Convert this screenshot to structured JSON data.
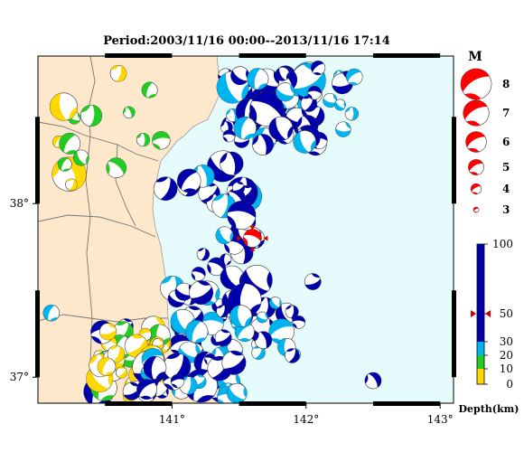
{
  "title": "Period:2003/11/16 00:00--2013/11/16 17:14",
  "map": {
    "lat_ticks": [
      {
        "label": "38°",
        "lat": 38
      },
      {
        "label": "37°",
        "lat": 37
      }
    ],
    "lon_ticks": [
      {
        "label": "141°",
        "lon": 141
      },
      {
        "label": "142°",
        "lon": 142
      },
      {
        "label": "143°",
        "lon": 143
      }
    ],
    "extent": {
      "lon_min": 140.0,
      "lon_max": 143.1,
      "lat_min": 36.85,
      "lat_max": 38.85
    },
    "colors": {
      "land": "#fde8cc",
      "sea": "#e6fcfc",
      "border": "#777777",
      "coast": "#999999"
    },
    "highlight_event": {
      "lon": 141.6,
      "lat": 37.8,
      "depth_label": "50",
      "color": "#ff0000"
    }
  },
  "magnitude_legend": {
    "title": "M",
    "items": [
      {
        "label": "8",
        "mag": 8
      },
      {
        "label": "7",
        "mag": 7
      },
      {
        "label": "6",
        "mag": 6
      },
      {
        "label": "5",
        "mag": 5
      },
      {
        "label": "4",
        "mag": 4
      },
      {
        "label": "3",
        "mag": 3
      }
    ]
  },
  "depth_legend": {
    "title": "Depth(km)",
    "ticks": [
      "100",
      "50",
      "30",
      "20",
      "10",
      "0"
    ],
    "bands": [
      {
        "from": 0,
        "to": 10,
        "color": "#ffd800"
      },
      {
        "from": 10,
        "to": 20,
        "color": "#22cc22"
      },
      {
        "from": 20,
        "to": 30,
        "color": "#00b4f0"
      },
      {
        "from": 30,
        "to": 100,
        "color": "#0000aa"
      }
    ],
    "marker_value": 50
  }
}
